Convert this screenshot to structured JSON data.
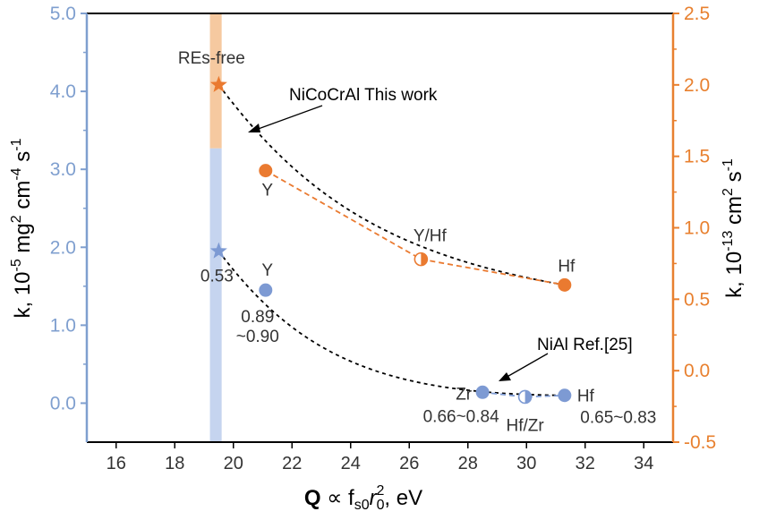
{
  "chart_data": {
    "type": "scatter",
    "x_axis": {
      "label_bold": "Q",
      "label_rest": " ∝ f",
      "label_sub1": "s0",
      "label_mid": "r",
      "label_sub2": "0",
      "label_sup": "2",
      "label_end": ", eV",
      "range": [
        15,
        35
      ],
      "ticks": [
        "16",
        "18",
        "20",
        "22",
        "24",
        "26",
        "28",
        "30",
        "32",
        "34"
      ]
    },
    "y_left": {
      "label": "k, 10",
      "label_sup1": "-5",
      "label_mid": " mg",
      "label_sup2": "2",
      "label_mid2": " cm",
      "label_sup3": "-4",
      "label_end": " s",
      "label_sup4": "-1",
      "range": [
        -0.5,
        5.0
      ],
      "ticks": [
        "0.0",
        "1.0",
        "2.0",
        "3.0",
        "4.0",
        "5.0"
      ],
      "color": "#7f9fcf"
    },
    "y_right": {
      "label": "k, 10",
      "label_sup1": "-13",
      "label_mid": " cm",
      "label_sup2": "2",
      "label_end": " s",
      "label_sup3": "-1",
      "range": [
        -0.5,
        2.5
      ],
      "ticks": [
        "-0.5",
        "0.0",
        "0.5",
        "1.0",
        "1.5",
        "2.0",
        "2.5"
      ],
      "color": "#e8802f"
    },
    "band": {
      "x": [
        19.2,
        19.6
      ],
      "y_blue": [
        -0.5,
        3.27
      ],
      "y_orange": [
        3.27,
        5.0
      ]
    },
    "series": [
      {
        "name": "NiCoCrAl  This work",
        "axis": "right",
        "color": "#ea7a30",
        "points": [
          {
            "x": 19.5,
            "y": 2.0,
            "marker": "star",
            "label": "REs-free"
          },
          {
            "x": 21.1,
            "y": 1.4,
            "marker": "circle",
            "label": "Y"
          },
          {
            "x": 26.4,
            "y": 0.78,
            "marker": "half",
            "label": "Y/Hf"
          },
          {
            "x": 31.3,
            "y": 0.6,
            "marker": "circle",
            "label": "Hf"
          }
        ]
      },
      {
        "name": "NiAl Ref.[25]",
        "axis": "left",
        "color": "#7d9ad3",
        "points": [
          {
            "x": 19.5,
            "y": 1.95,
            "marker": "star",
            "label": "0.53"
          },
          {
            "x": 21.1,
            "y": 1.45,
            "marker": "circle",
            "label": "Y",
            "note1": "0.89",
            "note2": "~0.90"
          },
          {
            "x": 28.5,
            "y": 0.14,
            "marker": "circle",
            "label": "Zr",
            "note1": "0.66~0.84"
          },
          {
            "x": 29.95,
            "y": 0.08,
            "marker": "half",
            "label": "Hf/Zr"
          },
          {
            "x": 31.3,
            "y": 0.1,
            "marker": "circle",
            "label": "Hf",
            "note1": "0.65~0.83"
          }
        ]
      }
    ],
    "annotations": {
      "this_work": "NiCoCrAl  This work",
      "ref": "NiAl Ref.[25]"
    }
  }
}
